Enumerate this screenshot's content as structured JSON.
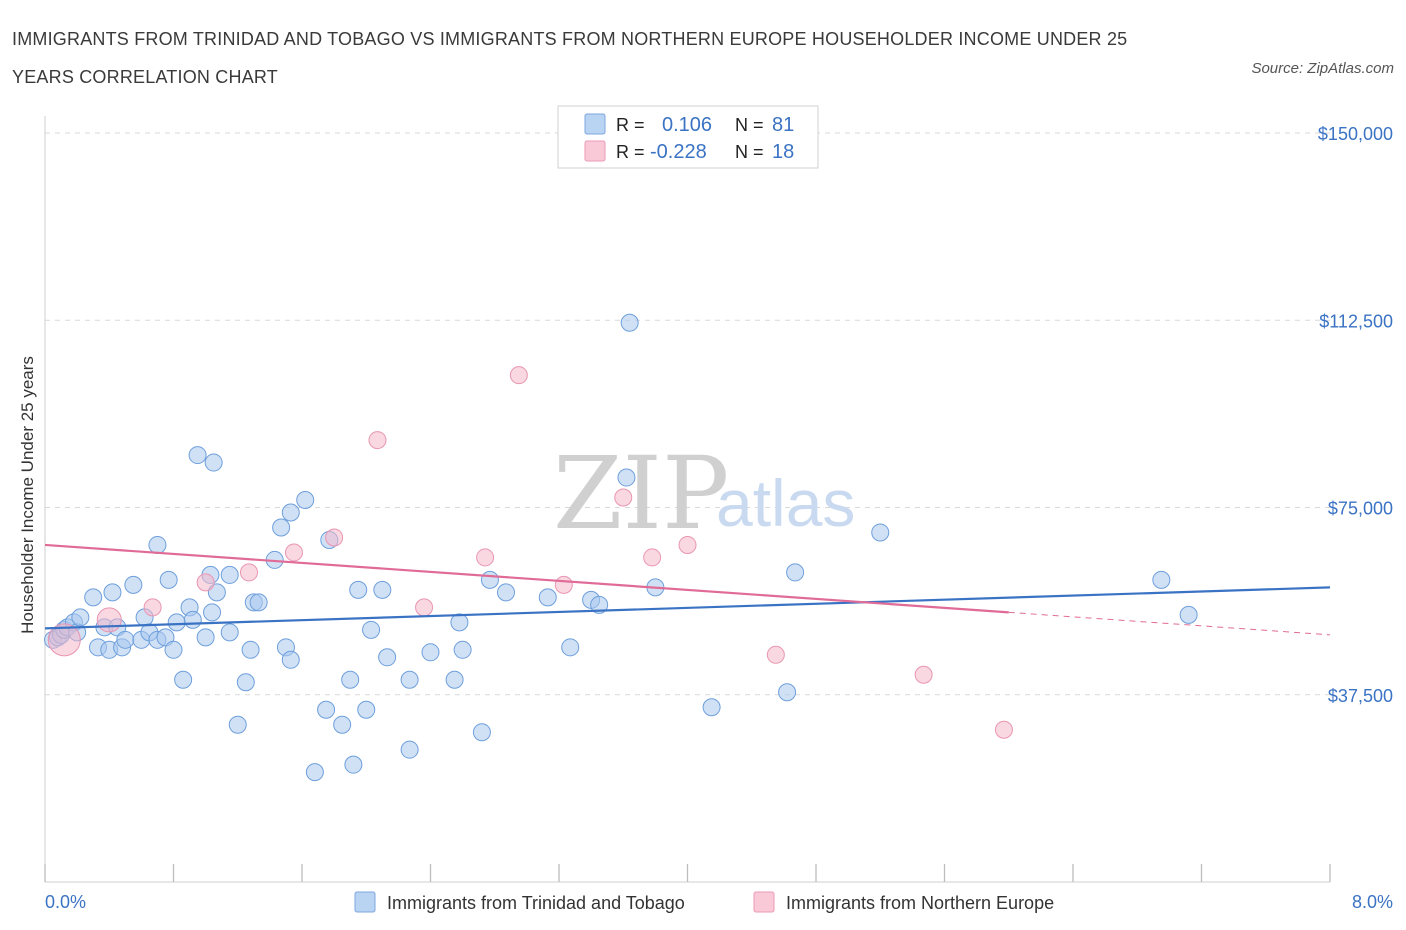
{
  "title": "IMMIGRANTS FROM TRINIDAD AND TOBAGO VS IMMIGRANTS FROM NORTHERN EUROPE HOUSEHOLDER INCOME UNDER 25 YEARS CORRELATION CHART",
  "source": "Source: ZipAtlas.com",
  "watermark": {
    "zip": "ZIP",
    "atlas": "atlas"
  },
  "colors": {
    "blue": "#3b73c4",
    "blue_fill": "#a9c8ef",
    "pink": "#e06b97",
    "pink_fill": "#f4b8cb",
    "grid": "#d9d9d9"
  },
  "stats_box": {
    "rows": [
      {
        "r_label": "R = ",
        "r_value": "0.106",
        "n_label": "N = ",
        "n_value": "81"
      },
      {
        "r_label": "R = ",
        "r_value": "-0.228",
        "n_label": "N = ",
        "n_value": "18"
      }
    ]
  },
  "chart_data": {
    "type": "scatter",
    "title": "IMMIGRANTS FROM TRINIDAD AND TOBAGO VS IMMIGRANTS FROM NORTHERN EUROPE HOUSEHOLDER INCOME UNDER 25 YEARS CORRELATION CHART",
    "xlabel": "",
    "ylabel": "Householder Income Under 25 years",
    "xlim": [
      0,
      8
    ],
    "ylim": [
      0,
      150000
    ],
    "x_tick_labels": [
      "0.0%",
      "8.0%"
    ],
    "y_ticks": [
      37500,
      75000,
      112500,
      150000
    ],
    "y_tick_labels": [
      "$37,500",
      "$75,000",
      "$112,500",
      "$150,000"
    ],
    "grid": true,
    "legend": [
      "Immigrants from Trinidad and Tobago",
      "Immigrants from Northern Europe"
    ],
    "series": [
      {
        "name": "Immigrants from Trinidad and Tobago",
        "r": 0.106,
        "n": 81,
        "trend": {
          "x0": 0.0,
          "y0": 50800,
          "x1": 8.0,
          "y1": 59000
        },
        "points": [
          [
            0.05,
            48500
          ],
          [
            0.08,
            49000
          ],
          [
            0.1,
            49500
          ],
          [
            0.12,
            50500
          ],
          [
            0.14,
            51000
          ],
          [
            0.18,
            52000
          ],
          [
            0.2,
            50000
          ],
          [
            0.22,
            53000
          ],
          [
            0.3,
            57000
          ],
          [
            0.33,
            47000
          ],
          [
            0.37,
            51000
          ],
          [
            0.4,
            46500
          ],
          [
            0.42,
            58000
          ],
          [
            0.45,
            51000
          ],
          [
            0.48,
            47000
          ],
          [
            0.5,
            48500
          ],
          [
            0.55,
            59500
          ],
          [
            0.6,
            48500
          ],
          [
            0.62,
            53000
          ],
          [
            0.65,
            50000
          ],
          [
            0.7,
            48500
          ],
          [
            0.75,
            49000
          ],
          [
            0.7,
            67500
          ],
          [
            0.77,
            60500
          ],
          [
            0.8,
            46500
          ],
          [
            0.82,
            52000
          ],
          [
            0.86,
            40500
          ],
          [
            0.9,
            55000
          ],
          [
            0.92,
            52500
          ],
          [
            0.95,
            85500
          ],
          [
            1.0,
            49000
          ],
          [
            1.03,
            61500
          ],
          [
            1.04,
            54000
          ],
          [
            1.05,
            84000
          ],
          [
            1.07,
            58000
          ],
          [
            1.15,
            61500
          ],
          [
            1.15,
            50000
          ],
          [
            1.2,
            31500
          ],
          [
            1.25,
            40000
          ],
          [
            1.28,
            46500
          ],
          [
            1.3,
            56000
          ],
          [
            1.33,
            56000
          ],
          [
            1.43,
            64500
          ],
          [
            1.47,
            71000
          ],
          [
            1.5,
            47000
          ],
          [
            1.53,
            44500
          ],
          [
            1.53,
            74000
          ],
          [
            1.62,
            76500
          ],
          [
            1.68,
            22000
          ],
          [
            1.75,
            34500
          ],
          [
            1.77,
            68500
          ],
          [
            1.85,
            31500
          ],
          [
            1.9,
            40500
          ],
          [
            1.92,
            23500
          ],
          [
            1.95,
            58500
          ],
          [
            2.0,
            34500
          ],
          [
            2.03,
            50500
          ],
          [
            2.1,
            58500
          ],
          [
            2.27,
            26500
          ],
          [
            2.27,
            40500
          ],
          [
            2.4,
            46000
          ],
          [
            2.55,
            40500
          ],
          [
            2.58,
            52000
          ],
          [
            2.6,
            46500
          ],
          [
            2.72,
            30000
          ],
          [
            2.77,
            60500
          ],
          [
            2.87,
            58000
          ],
          [
            3.13,
            57000
          ],
          [
            3.27,
            47000
          ],
          [
            3.4,
            56500
          ],
          [
            3.45,
            55500
          ],
          [
            3.62,
            81000
          ],
          [
            3.64,
            112000
          ],
          [
            3.8,
            59000
          ],
          [
            4.15,
            35000
          ],
          [
            4.62,
            38000
          ],
          [
            4.67,
            62000
          ],
          [
            5.2,
            70000
          ],
          [
            6.95,
            60500
          ],
          [
            7.12,
            53500
          ],
          [
            2.13,
            45000
          ]
        ]
      },
      {
        "name": "Immigrants from Northern Europe",
        "r": -0.228,
        "n": 18,
        "trend": {
          "x0": 0.0,
          "y0": 67500,
          "x1": 6.0,
          "y1": 54000,
          "dash_x1": 8.0,
          "dash_y1": 49500
        },
        "points": [
          [
            0.12,
            48500
          ],
          [
            0.4,
            52500
          ],
          [
            0.67,
            55000
          ],
          [
            1.0,
            60000
          ],
          [
            1.27,
            62000
          ],
          [
            1.55,
            66000
          ],
          [
            1.8,
            69000
          ],
          [
            2.07,
            88500
          ],
          [
            2.36,
            55000
          ],
          [
            2.74,
            65000
          ],
          [
            2.95,
            101500
          ],
          [
            3.23,
            59500
          ],
          [
            3.6,
            77000
          ],
          [
            3.78,
            65000
          ],
          [
            4.0,
            67500
          ],
          [
            4.55,
            45500
          ],
          [
            5.47,
            41500
          ],
          [
            5.97,
            30500
          ]
        ]
      }
    ]
  }
}
